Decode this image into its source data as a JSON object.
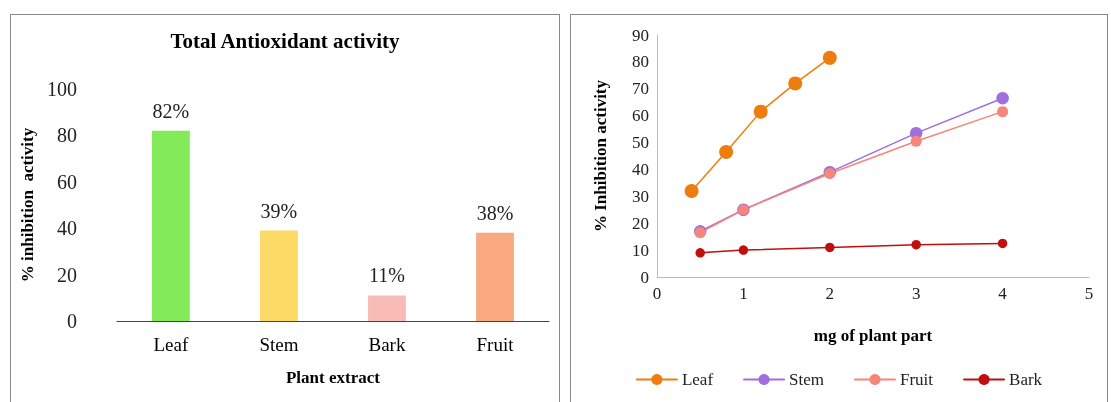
{
  "chart_data": [
    {
      "type": "bar",
      "title": "Total Antioxidant activity",
      "xlabel": "Plant extract",
      "ylabel": "% inhibition  activity",
      "categories": [
        "Leaf",
        "Stem",
        "Bark",
        "Fruit"
      ],
      "values": [
        82,
        39,
        11,
        38
      ],
      "colors": [
        "#83eb5a",
        "#fdd966",
        "#f8bbb5",
        "#f8a97e"
      ],
      "value_labels": [
        "82%",
        "39%",
        "11%",
        "38%"
      ],
      "ylim": [
        0,
        100
      ],
      "yticks": [
        0,
        20,
        40,
        60,
        80,
        100
      ],
      "grid": false,
      "legend": false
    },
    {
      "type": "line",
      "xlabel": "mg of plant part",
      "ylabel": "% Inhibition activity",
      "series": [
        {
          "name": "Leaf",
          "color": "#ed7d0e",
          "x": [
            0.4,
            0.8,
            1.2,
            1.6,
            2
          ],
          "values": [
            32,
            46.5,
            61.5,
            72,
            81.5
          ]
        },
        {
          "name": "Stem",
          "color": "#9f6fe0",
          "x": [
            0.5,
            1,
            2,
            3,
            4
          ],
          "values": [
            17,
            25,
            39,
            53.5,
            66.5
          ]
        },
        {
          "name": "Fruit",
          "color": "#f6867a",
          "x": [
            0.5,
            1,
            2,
            3,
            4
          ],
          "values": [
            16.5,
            25,
            38.5,
            50.5,
            61.5
          ]
        },
        {
          "name": "Bark",
          "color": "#c00f0f",
          "x": [
            0.5,
            1,
            2,
            3,
            4
          ],
          "values": [
            9,
            10,
            11,
            12,
            12.5
          ]
        }
      ],
      "xlim": [
        0,
        5
      ],
      "xticks": [
        0,
        1,
        2,
        3,
        4,
        5
      ],
      "ylim": [
        0,
        90
      ],
      "yticks": [
        0,
        10,
        20,
        30,
        40,
        50,
        60,
        70,
        80,
        90
      ],
      "grid": false,
      "legend": "bottom",
      "marker": "circle",
      "line_style": "solid"
    }
  ]
}
